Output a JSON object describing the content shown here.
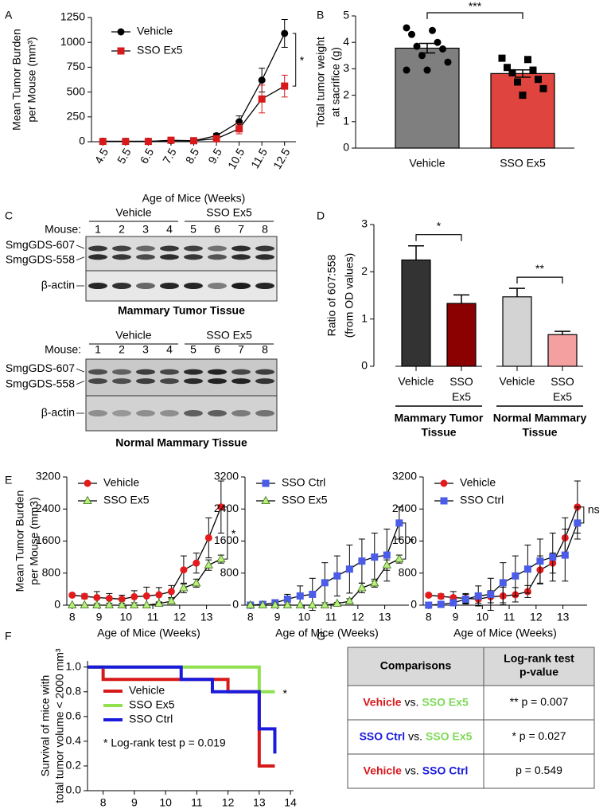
{
  "panel_labels": [
    "A",
    "B",
    "C",
    "D",
    "E",
    "F",
    "G"
  ],
  "chart_data": [
    {
      "type": "line",
      "categories": [
        "4.5",
        "5.5",
        "6.5",
        "7.5",
        "8.5",
        "9.5",
        "10.5",
        "11.5",
        "12.5"
      ],
      "x_label": "Age of Mice (Weeks)",
      "y_label": [
        "Mean Tumor Burden",
        "per Mouse (mm³)"
      ],
      "ylim": [
        0,
        1250
      ],
      "yticks": [
        0,
        250,
        500,
        750,
        1000,
        1250
      ],
      "legend": "upper left",
      "annotation": "*",
      "series": [
        {
          "name": "Vehicle",
          "color": "#000000",
          "marker": "circle",
          "values": [
            5,
            5,
            5,
            10,
            10,
            60,
            200,
            620,
            1090
          ],
          "error": [
            3,
            3,
            3,
            5,
            5,
            25,
            60,
            120,
            140
          ]
        },
        {
          "name": "SSO Ex5",
          "color": "#d7191c",
          "marker": "square",
          "values": [
            3,
            3,
            3,
            15,
            10,
            30,
            130,
            430,
            560
          ],
          "error": [
            2,
            2,
            2,
            8,
            5,
            15,
            50,
            140,
            110
          ]
        }
      ]
    },
    {
      "type": "bar",
      "categories": [
        "Vehicle",
        "SSO Ex5"
      ],
      "values": [
        3.78,
        2.82
      ],
      "error": [
        0.18,
        0.14
      ],
      "colors": [
        "#7f7f7f",
        "#e0443e"
      ],
      "point_markers": [
        "circle",
        "square"
      ],
      "points": [
        [
          4.55,
          4.45,
          4.3,
          4.0,
          3.85,
          3.75,
          3.5,
          3.25,
          2.95,
          2.95
        ],
        [
          3.4,
          3.35,
          3.05,
          2.95,
          2.85,
          2.6,
          2.5,
          2.25,
          2.0
        ]
      ],
      "y_label": [
        "Total tumor weight",
        "at sacrifice (g)"
      ],
      "ylim": [
        0,
        5
      ],
      "yticks": [
        0,
        1,
        2,
        3,
        4,
        5
      ],
      "annotation": "***"
    },
    {
      "type": "bar",
      "categories": [
        "Vehicle",
        "SSO Ex5",
        "Vehicle",
        "SSO Ex5"
      ],
      "groups": [
        [
          "Mammary Tumor",
          "Tissue"
        ],
        [
          "Normal Mammary",
          "Tissue"
        ]
      ],
      "values": [
        2.25,
        1.33,
        1.47,
        0.67
      ],
      "error": [
        0.3,
        0.18,
        0.18,
        0.07
      ],
      "colors": [
        "#333333",
        "#8b0000",
        "#d3d3d3",
        "#f4a0a0"
      ],
      "y_label": [
        "Ratio of 607:558",
        "(from OD values)"
      ],
      "ylim": [
        0,
        3
      ],
      "yticks": [
        0,
        1,
        2,
        3
      ],
      "annotations": [
        "*",
        "**"
      ]
    },
    {
      "type": "line",
      "x": [
        8,
        8.46,
        8.92,
        9.38,
        9.85,
        10.31,
        10.77,
        11.23,
        11.69,
        12.15,
        12.62,
        13.08,
        13.54
      ],
      "xlim": [
        7.8,
        13.9
      ],
      "xticks": [
        8,
        9,
        10,
        11,
        12,
        13
      ],
      "ylim": [
        0,
        3200
      ],
      "yticks": [
        0,
        800,
        1600,
        2400,
        3200
      ],
      "x_label": "Age of Mice (Weeks)",
      "y_label": [
        "Mean Tumor Burden",
        "per Mouse (mm3)"
      ],
      "legend": "upper left",
      "annotation": "*",
      "series": [
        {
          "name": "Vehicle",
          "color": "#e41a1c",
          "marker": "circle",
          "values": [
            250,
            220,
            190,
            170,
            150,
            210,
            230,
            260,
            340,
            880,
            1050,
            1680,
            2450
          ],
          "error": [
            40,
            60,
            150,
            120,
            100,
            150,
            220,
            180,
            150,
            350,
            250,
            500,
            650
          ]
        },
        {
          "name": "SSO Ex5",
          "color": "#b6ef7a",
          "marker": "triangle",
          "values": [
            0,
            0,
            0,
            0,
            0,
            0,
            0,
            40,
            100,
            430,
            550,
            1000,
            1150
          ],
          "error": [
            0,
            0,
            0,
            0,
            0,
            0,
            0,
            30,
            60,
            120,
            100,
            130,
            100
          ]
        }
      ]
    },
    {
      "type": "line",
      "x": [
        8,
        8.46,
        8.92,
        9.38,
        9.85,
        10.31,
        10.77,
        11.23,
        11.69,
        12.15,
        12.62,
        13.08,
        13.54
      ],
      "xlim": [
        7.8,
        13.9
      ],
      "xticks": [
        8,
        9,
        10,
        11,
        12,
        13
      ],
      "ylim": [
        0,
        3200
      ],
      "yticks": [
        0,
        800,
        1600,
        2400,
        3200
      ],
      "x_label": "Age of Mice (Weeks)",
      "legend": "upper left",
      "annotation": "*",
      "series": [
        {
          "name": "SSO Ctrl",
          "color": "#4a5ce8",
          "marker": "square",
          "values": [
            0,
            20,
            60,
            150,
            230,
            270,
            560,
            730,
            900,
            1100,
            1200,
            1250,
            2050
          ],
          "error": [
            0,
            20,
            60,
            120,
            250,
            400,
            500,
            500,
            600,
            550,
            600,
            650,
            400
          ]
        },
        {
          "name": "SSO Ex5",
          "color": "#b6ef7a",
          "marker": "triangle",
          "values": [
            0,
            0,
            0,
            0,
            0,
            0,
            0,
            40,
            100,
            430,
            550,
            1000,
            1150
          ],
          "error": [
            0,
            0,
            0,
            0,
            0,
            0,
            0,
            30,
            60,
            120,
            100,
            130,
            100
          ]
        }
      ]
    },
    {
      "type": "line",
      "x": [
        8,
        8.46,
        8.92,
        9.38,
        9.85,
        10.31,
        10.77,
        11.23,
        11.69,
        12.15,
        12.62,
        13.08,
        13.54
      ],
      "xlim": [
        7.8,
        13.9
      ],
      "xticks": [
        8,
        9,
        10,
        11,
        12,
        13
      ],
      "ylim": [
        0,
        3200
      ],
      "yticks": [
        0,
        800,
        1600,
        2400,
        3200
      ],
      "x_label": "Age of Mice (Weeks)",
      "legend": "upper left",
      "annotation": "ns",
      "series": [
        {
          "name": "Vehicle",
          "color": "#e41a1c",
          "marker": "circle",
          "values": [
            250,
            220,
            190,
            170,
            150,
            210,
            230,
            260,
            340,
            880,
            1050,
            1680,
            2450
          ],
          "error": [
            40,
            60,
            150,
            120,
            100,
            150,
            220,
            180,
            150,
            350,
            250,
            500,
            650
          ]
        },
        {
          "name": "SSO Ctrl",
          "color": "#4a5ce8",
          "marker": "square",
          "values": [
            0,
            20,
            60,
            150,
            230,
            270,
            560,
            730,
            900,
            1100,
            1200,
            1250,
            2050
          ],
          "error": [
            0,
            20,
            60,
            120,
            250,
            400,
            500,
            500,
            600,
            550,
            600,
            650,
            400
          ]
        }
      ]
    },
    {
      "type": "line",
      "drawstyle": "steps-post",
      "xlim": [
        7.5,
        14.1
      ],
      "xticks": [
        8,
        9,
        10,
        11,
        12,
        13,
        14
      ],
      "ylim": [
        0,
        1.05
      ],
      "yticks": [
        {
          "value": 0,
          "label": "0.0"
        },
        0.2,
        0.4,
        0.6,
        0.8,
        {
          "value": 1,
          "label": "1.0"
        }
      ],
      "x_label": "Age of Mice (Weeks)",
      "y_label": [
        "Survival of mice with",
        "total tumor volume < 2000 mm³"
      ],
      "legend": "lower left",
      "annotation": "*",
      "note": "* Log-rank test p = 0.019",
      "series": [
        {
          "name": "Vehicle",
          "color": "#d7191c",
          "x": [
            7.5,
            8,
            12,
            13,
            13.5
          ],
          "values": [
            1,
            0.9,
            0.8,
            0.2,
            0.2
          ]
        },
        {
          "name": "SSO Ex5",
          "color": "#90e050",
          "x": [
            7.5,
            13,
            13.5
          ],
          "values": [
            1,
            0.8,
            0.8
          ]
        },
        {
          "name": "SSO Ctrl",
          "color": "#1a1adc",
          "x": [
            7.5,
            10.5,
            11.5,
            13,
            13.5
          ],
          "values": [
            1,
            0.9,
            0.8,
            0.5,
            0.3
          ]
        }
      ]
    }
  ],
  "blots": [
    {
      "groups": [
        "Vehicle",
        "SSO Ex5"
      ],
      "mouse_label": "Mouse:",
      "lanes": [
        "1",
        "2",
        "3",
        "4",
        "5",
        "6",
        "7",
        "8"
      ],
      "bands": [
        "SmgGDS-607",
        "SmgGDS-558"
      ],
      "loading_control": "β-actin",
      "tissue": "Mammary Tumor Tissue"
    },
    {
      "groups": [
        "Vehicle",
        "SSO Ex5"
      ],
      "mouse_label": "Mouse:",
      "lanes": [
        "1",
        "2",
        "3",
        "4",
        "5",
        "6",
        "7",
        "8"
      ],
      "bands": [
        "SmgGDS-607",
        "SmgGDS-558"
      ],
      "loading_control": "β-actin",
      "tissue": "Normal Mammary Tissue"
    }
  ],
  "table": {
    "header": {
      "comparisons": "Comparisons",
      "p_value": [
        "Log-rank test",
        "p-value"
      ]
    },
    "rows": [
      {
        "a": "Vehicle",
        "a_color": "#d7191c",
        "vs": "vs.",
        "b": "SSO Ex5",
        "b_color": "#7ed957",
        "p": "** p = 0.007"
      },
      {
        "a": "SSO Ctrl",
        "a_color": "#1a1adc",
        "vs": "vs.",
        "b": "SSO Ex5",
        "b_color": "#7ed957",
        "p": "* p = 0.027"
      },
      {
        "a": "Vehicle",
        "a_color": "#d7191c",
        "vs": "vs.",
        "b": "SSO Ctrl",
        "b_color": "#1a1adc",
        "p": "p = 0.549"
      }
    ]
  }
}
